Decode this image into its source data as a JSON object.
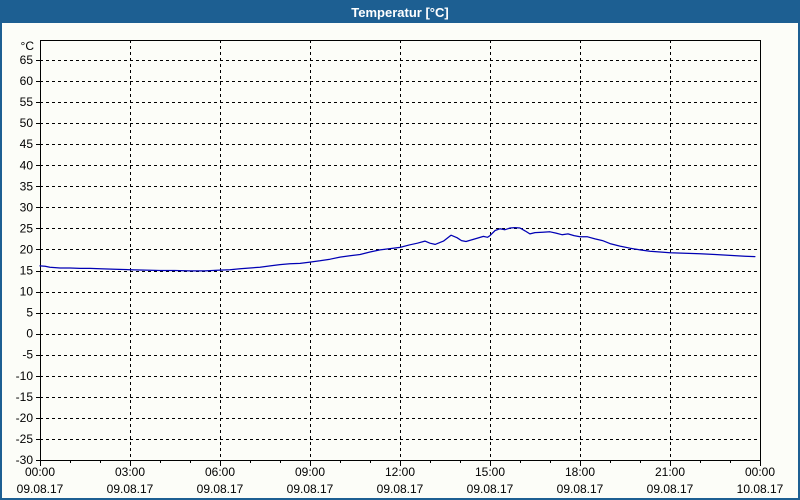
{
  "window": {
    "title": "Temperatur [°C]",
    "titlebar_color": "#1d5f92",
    "border_color": "#1d5f92",
    "background_color": "#fcfdf8"
  },
  "chart_data": {
    "type": "line",
    "title": "Temperatur [°C]",
    "ylabel": "°C",
    "grid": {
      "style": "dashed",
      "color": "#000000",
      "on": true
    },
    "legend": "none",
    "y_axis": {
      "min": -30,
      "max_gridline": 65,
      "top_value": 69.75,
      "tick_step": 5,
      "unit": "°C",
      "ticks": [
        65,
        60,
        55,
        50,
        45,
        40,
        35,
        30,
        25,
        20,
        15,
        10,
        5,
        0,
        -5,
        -10,
        -15,
        -20,
        -25,
        -30
      ]
    },
    "x_axis": {
      "hours_span": 24,
      "minor_tick_hours": 1,
      "major_tick_hours": 3,
      "tick_labels": [
        {
          "hour": 0,
          "time": "00:00",
          "date": "09.08.17"
        },
        {
          "hour": 3,
          "time": "03:00",
          "date": "09.08.17"
        },
        {
          "hour": 6,
          "time": "06:00",
          "date": "09.08.17"
        },
        {
          "hour": 9,
          "time": "09:00",
          "date": "09.08.17"
        },
        {
          "hour": 12,
          "time": "12:00",
          "date": "09.08.17"
        },
        {
          "hour": 15,
          "time": "15:00",
          "date": "09.08.17"
        },
        {
          "hour": 18,
          "time": "18:00",
          "date": "09.08.17"
        },
        {
          "hour": 21,
          "time": "21:00",
          "date": "09.08.17"
        },
        {
          "hour": 24,
          "time": "00:00",
          "date": "10.08.17"
        }
      ]
    },
    "series": [
      {
        "name": "Temperatur",
        "color": "#0000b4",
        "points": [
          [
            0.0,
            16.1
          ],
          [
            0.17,
            16.0
          ],
          [
            0.33,
            15.8
          ],
          [
            0.67,
            15.6
          ],
          [
            1.0,
            15.6
          ],
          [
            1.33,
            15.5
          ],
          [
            1.67,
            15.5
          ],
          [
            2.0,
            15.4
          ],
          [
            2.5,
            15.3
          ],
          [
            3.0,
            15.2
          ],
          [
            3.5,
            15.1
          ],
          [
            4.0,
            15.0
          ],
          [
            4.5,
            15.0
          ],
          [
            5.0,
            14.9
          ],
          [
            5.5,
            14.9
          ],
          [
            6.0,
            15.1
          ],
          [
            6.33,
            15.2
          ],
          [
            6.67,
            15.4
          ],
          [
            7.0,
            15.6
          ],
          [
            7.33,
            15.8
          ],
          [
            7.67,
            16.1
          ],
          [
            8.0,
            16.4
          ],
          [
            8.33,
            16.6
          ],
          [
            8.67,
            16.7
          ],
          [
            9.0,
            17.0
          ],
          [
            9.33,
            17.3
          ],
          [
            9.67,
            17.7
          ],
          [
            10.0,
            18.2
          ],
          [
            10.33,
            18.5
          ],
          [
            10.67,
            18.8
          ],
          [
            11.0,
            19.4
          ],
          [
            11.33,
            19.9
          ],
          [
            11.67,
            20.2
          ],
          [
            12.0,
            20.5
          ],
          [
            12.33,
            21.1
          ],
          [
            12.58,
            21.5
          ],
          [
            12.83,
            22.0
          ],
          [
            13.0,
            21.5
          ],
          [
            13.17,
            21.2
          ],
          [
            13.45,
            22.0
          ],
          [
            13.7,
            23.4
          ],
          [
            13.9,
            22.8
          ],
          [
            14.05,
            22.1
          ],
          [
            14.2,
            21.9
          ],
          [
            14.5,
            22.5
          ],
          [
            14.78,
            23.1
          ],
          [
            14.92,
            22.9
          ],
          [
            15.0,
            23.3
          ],
          [
            15.17,
            24.5
          ],
          [
            15.33,
            24.9
          ],
          [
            15.5,
            24.7
          ],
          [
            15.67,
            25.1
          ],
          [
            15.83,
            25.2
          ],
          [
            16.0,
            25.1
          ],
          [
            16.17,
            24.4
          ],
          [
            16.33,
            23.7
          ],
          [
            16.5,
            24.0
          ],
          [
            16.75,
            24.1
          ],
          [
            17.0,
            24.2
          ],
          [
            17.2,
            23.9
          ],
          [
            17.4,
            23.5
          ],
          [
            17.6,
            23.7
          ],
          [
            17.8,
            23.3
          ],
          [
            18.0,
            23.0
          ],
          [
            18.25,
            23.0
          ],
          [
            18.5,
            22.5
          ],
          [
            18.75,
            22.1
          ],
          [
            19.0,
            21.4
          ],
          [
            19.33,
            20.8
          ],
          [
            19.67,
            20.3
          ],
          [
            20.0,
            19.9
          ],
          [
            20.33,
            19.6
          ],
          [
            20.67,
            19.4
          ],
          [
            21.0,
            19.2
          ],
          [
            21.5,
            19.1
          ],
          [
            22.0,
            19.0
          ],
          [
            22.5,
            18.8
          ],
          [
            23.0,
            18.6
          ],
          [
            23.5,
            18.4
          ],
          [
            23.83,
            18.3
          ]
        ]
      }
    ]
  }
}
